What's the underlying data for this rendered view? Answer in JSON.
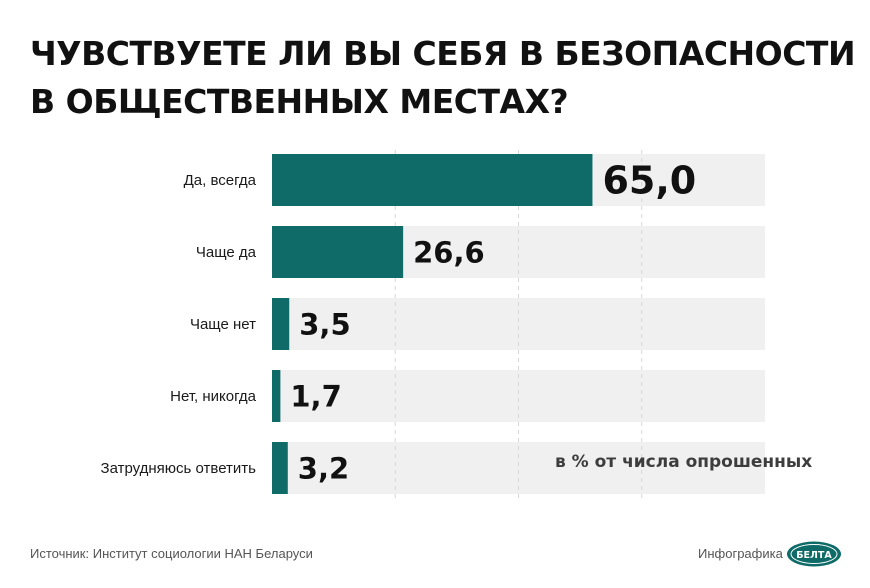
{
  "title_lines": [
    "ЧУВСТВУЕТЕ ЛИ ВЫ СЕБЯ В БЕЗОПАСНОСТИ",
    "В ОБЩЕСТВЕННЫХ МЕСТАХ?"
  ],
  "note": "в % от числа опрошенных",
  "source": "Источник: Институт социологии НАН Беларуси",
  "credit": "Инфографика",
  "logo_text": "БЕЛТА",
  "colors": {
    "bar": "#0e6b67",
    "track": "#f0f0f0",
    "logo": "#0e6b67"
  },
  "chart_data": {
    "type": "bar",
    "orientation": "horizontal",
    "categories": [
      "Да, всегда",
      "Чаще да",
      "Чаще нет",
      "Нет, никогда",
      "Затрудняюсь ответить"
    ],
    "values": [
      65.0,
      26.6,
      3.5,
      1.7,
      3.2
    ],
    "value_labels": [
      "65,0",
      "26,6",
      "3,5",
      "1,7",
      "3,2"
    ],
    "xlim": [
      0,
      100
    ],
    "grid": true
  }
}
